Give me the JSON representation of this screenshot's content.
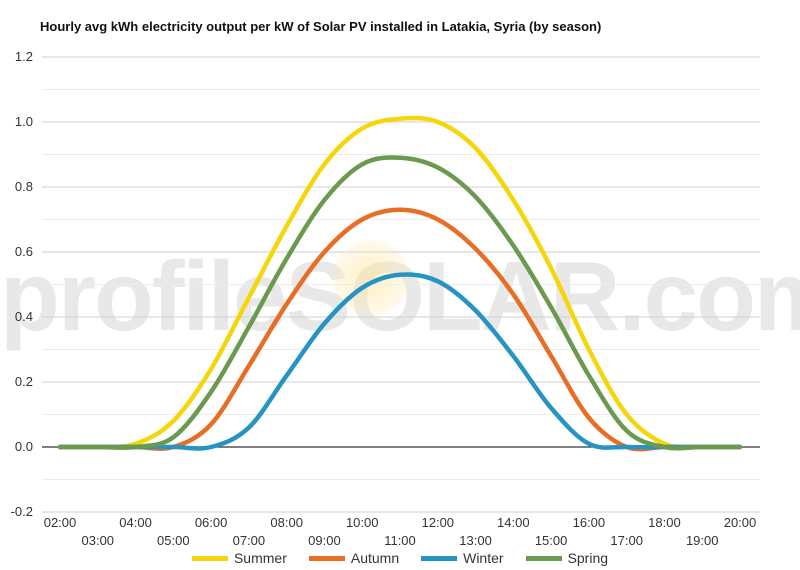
{
  "chart_data": {
    "type": "line",
    "title": "Hourly avg kWh electricity output per kW of Solar PV installed in Latakia, Syria (by season)",
    "watermark": "profileSOLAR.com",
    "ylim": [
      -0.2,
      1.2
    ],
    "yticks": [
      "1.2",
      "1.0",
      "0.8",
      "0.6",
      "0.4",
      "0.2",
      "0.0",
      "-0.2"
    ],
    "ytick_values": [
      1.2,
      1.0,
      0.8,
      0.6,
      0.4,
      0.2,
      0.0,
      -0.2
    ],
    "xticks_upper": [
      "02:00",
      "04:00",
      "06:00",
      "08:00",
      "10:00",
      "12:00",
      "14:00",
      "16:00",
      "18:00",
      "20:00"
    ],
    "xticks_lower": [
      "03:00",
      "05:00",
      "07:00",
      "09:00",
      "11:00",
      "13:00",
      "15:00",
      "17:00",
      "19:00"
    ],
    "x": [
      2,
      3,
      4,
      5,
      6,
      7,
      8,
      9,
      10,
      11,
      12,
      13,
      14,
      15,
      16,
      17,
      18,
      19,
      20
    ],
    "grid": true,
    "legend_position": "bottom",
    "series": [
      {
        "name": "Summer",
        "color": "#f5d60b",
        "values": [
          0.0,
          0.0,
          0.01,
          0.08,
          0.24,
          0.46,
          0.68,
          0.87,
          0.98,
          1.01,
          1.0,
          0.92,
          0.76,
          0.55,
          0.3,
          0.1,
          0.01,
          0.0,
          0.0
        ]
      },
      {
        "name": "Autumn",
        "color": "#e86d25",
        "values": [
          0.0,
          0.0,
          0.0,
          0.0,
          0.07,
          0.25,
          0.44,
          0.6,
          0.7,
          0.73,
          0.7,
          0.61,
          0.47,
          0.28,
          0.09,
          0.0,
          0.0,
          0.0,
          0.0
        ]
      },
      {
        "name": "Winter",
        "color": "#2694c3",
        "values": [
          0.0,
          0.0,
          0.0,
          0.0,
          0.0,
          0.06,
          0.22,
          0.38,
          0.49,
          0.53,
          0.51,
          0.42,
          0.28,
          0.12,
          0.01,
          0.0,
          0.0,
          0.0,
          0.0
        ]
      },
      {
        "name": "Spring",
        "color": "#6a9a50",
        "values": [
          0.0,
          0.0,
          0.0,
          0.03,
          0.17,
          0.37,
          0.58,
          0.76,
          0.87,
          0.89,
          0.86,
          0.77,
          0.62,
          0.43,
          0.22,
          0.05,
          0.0,
          0.0,
          0.0
        ]
      }
    ]
  }
}
